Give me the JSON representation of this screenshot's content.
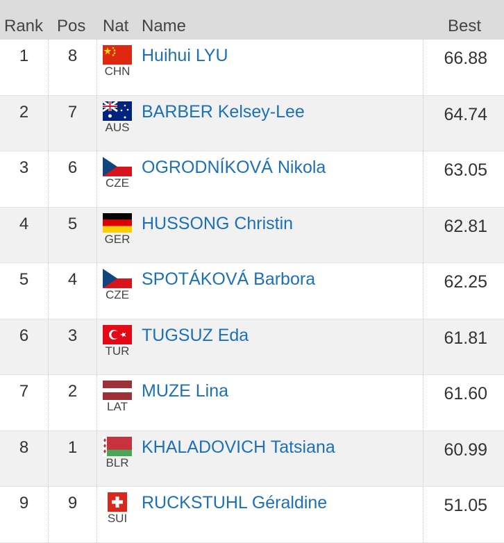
{
  "header": {
    "rank": "Rank",
    "pos": "Pos",
    "nat": "Nat",
    "name": "Name",
    "best": "Best"
  },
  "table": {
    "rows": [
      [
        "1",
        "8",
        "CHN",
        "Huihui LYU",
        "66.88"
      ],
      [
        "2",
        "7",
        "AUS",
        "BARBER Kelsey-Lee",
        "64.74"
      ],
      [
        "3",
        "6",
        "CZE",
        "OGRODNÍKOVÁ Nikola",
        "63.05"
      ],
      [
        "4",
        "5",
        "GER",
        "HUSSONG Christin",
        "62.81"
      ],
      [
        "5",
        "4",
        "CZE",
        "SPOTÁKOVÁ Barbora",
        "62.25"
      ],
      [
        "6",
        "3",
        "TUR",
        "TUGSUZ Eda",
        "61.81"
      ],
      [
        "7",
        "2",
        "LAT",
        "MUZE Lina",
        "61.60"
      ],
      [
        "8",
        "1",
        "BLR",
        "KHALADOVICH Tatsiana",
        "60.99"
      ],
      [
        "9",
        "9",
        "SUI",
        "RUCKSTUHL Géraldine",
        "51.05"
      ]
    ]
  }
}
